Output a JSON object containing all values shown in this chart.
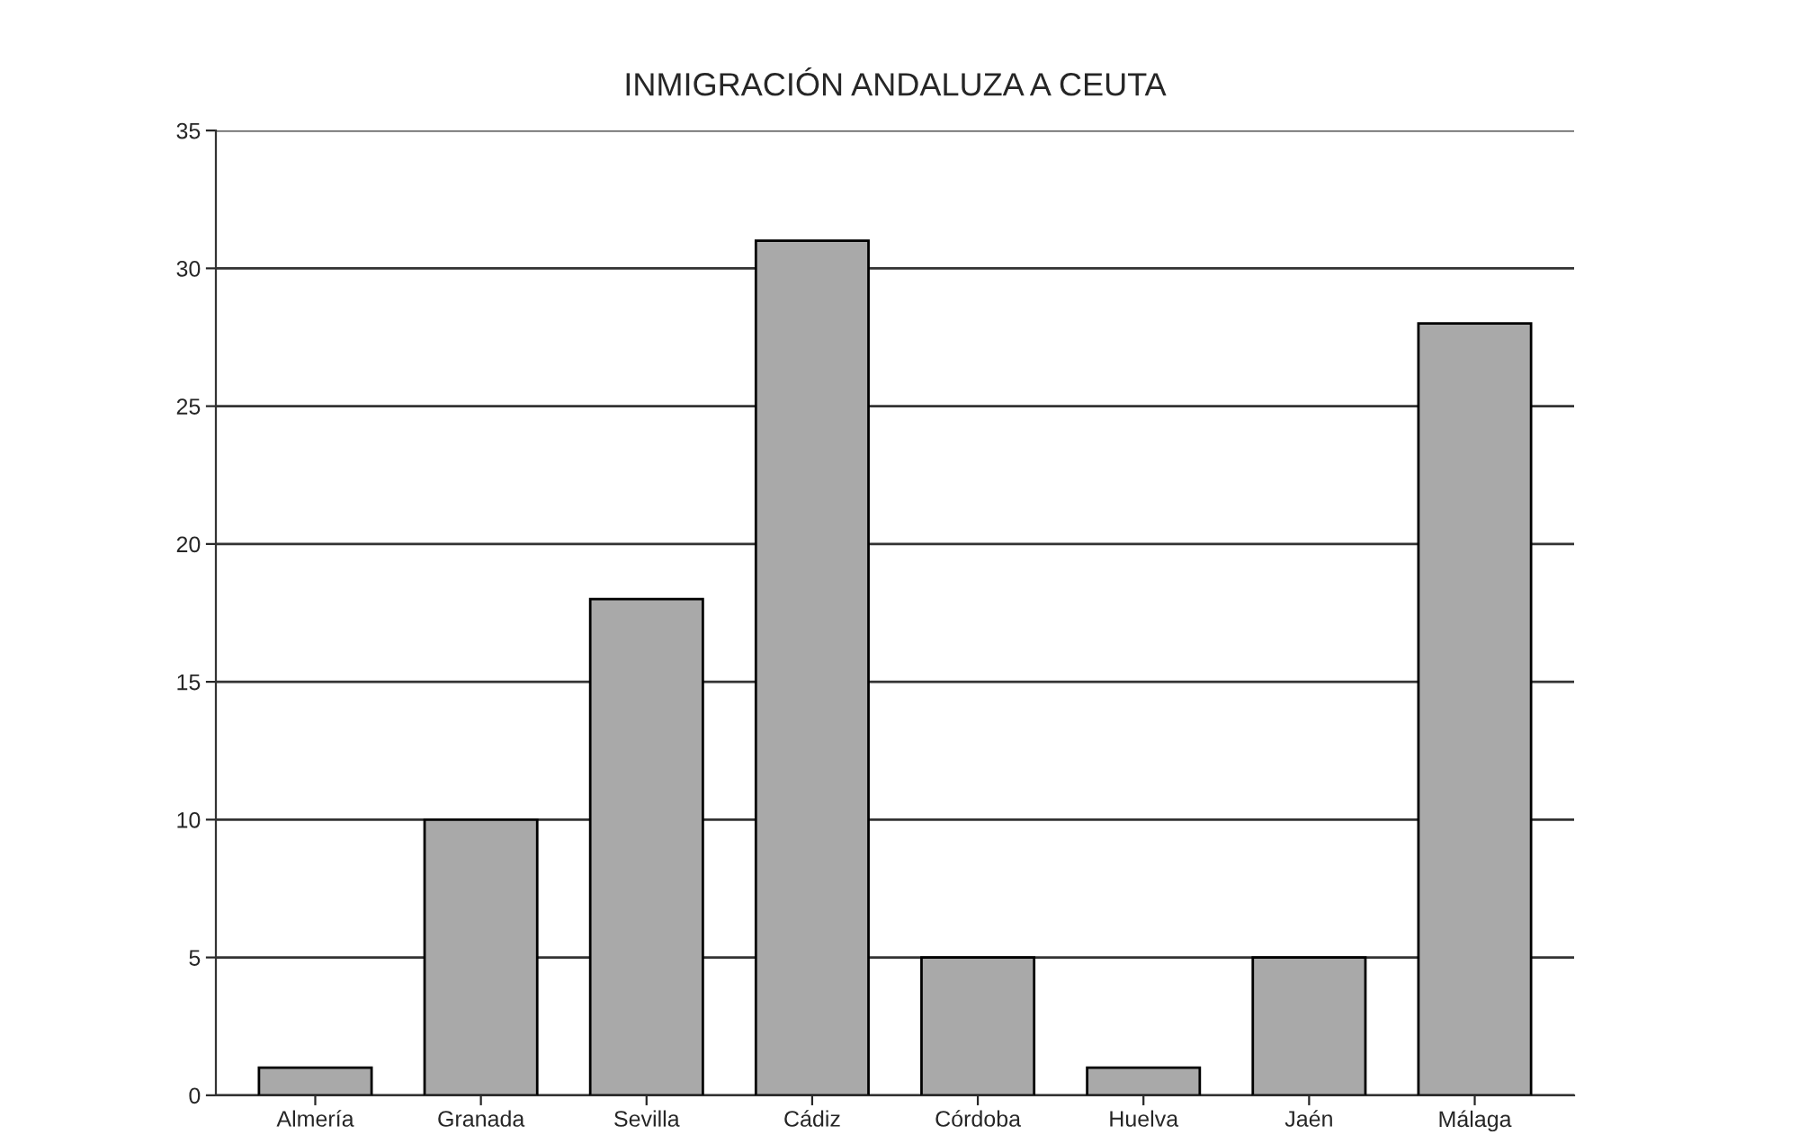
{
  "chart_data": {
    "type": "bar",
    "title": "INMIGRACIÓN ANDALUZA A CEUTA",
    "categories": [
      "Almería",
      "Granada",
      "Sevilla",
      "Cádiz",
      "Córdoba",
      "Huelva",
      "Jaén",
      "Málaga"
    ],
    "values": [
      1,
      10,
      18,
      31,
      5,
      1,
      5,
      28
    ],
    "color": "#a9a9a9",
    "ylim": [
      0,
      35
    ],
    "yticks": [
      0,
      5,
      10,
      15,
      20,
      25,
      30,
      35
    ],
    "grid": "y"
  }
}
